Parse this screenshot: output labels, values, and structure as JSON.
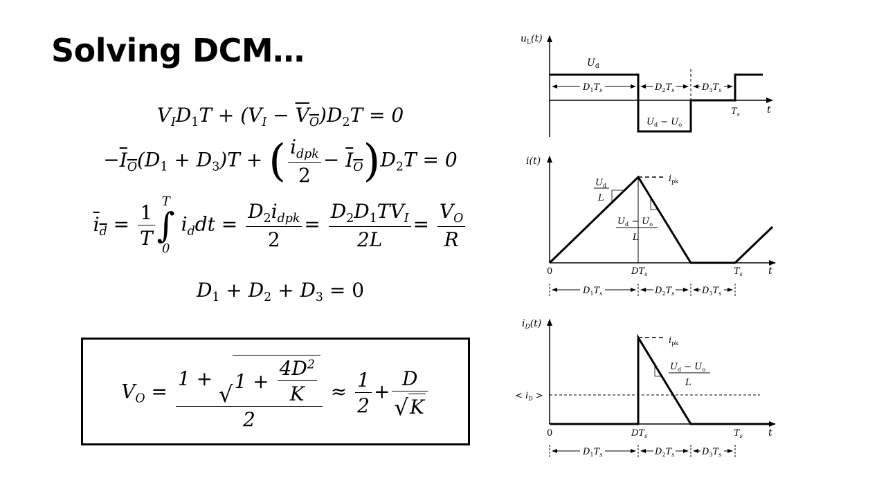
{
  "slide": {
    "title": "Solving DCM…"
  },
  "equations": {
    "eq1": {
      "a": "V",
      "ai": "I",
      "b": "D",
      "bi": "1",
      "c": "T + (",
      "d": "V",
      "di": "I",
      "e": " − ",
      "f": "V",
      "fi": "O",
      "g": ")",
      "h": "D",
      "hi": "2",
      "k": "T = 0"
    },
    "eq2": {
      "pre": "−",
      "io": "I",
      "ioi": "O",
      "p1": "(",
      "d1": "D",
      "d1i": "1",
      "plus": " + ",
      "d3": "D",
      "d3i": "3",
      "p2": ")T +",
      "lp": "(",
      "num": "i",
      "numi": "dpk",
      "den": "2",
      "minus": "−",
      "io2": "I",
      "io2i": "O",
      "rp": ")",
      "d2": "D",
      "d2i": "2",
      "tail": "T = 0"
    },
    "eq3": {
      "id": "i",
      "idi": "d",
      "eq": " =",
      "one": "1",
      "T": "T",
      "up": "T",
      "low": "0",
      "int": "∫",
      "body": "i",
      "bodyi": "d",
      "dt": "dt =",
      "n1a": "D",
      "n1ai": "2",
      "n1b": "i",
      "n1bi": "dpk",
      "d1": "2",
      "eq2": "=",
      "n2a": "D",
      "n2ai": "2",
      "n2b": "D",
      "n2bi": "1",
      "n2c": "TV",
      "n2ci": "I",
      "d2": "2L",
      "eq3": "=",
      "n3": "V",
      "n3i": "O",
      "d3": "R"
    },
    "eq4": {
      "a": "D",
      "ai": "1",
      "p1": " + ",
      "b": "D",
      "bi": "2",
      "p2": " + ",
      "c": "D",
      "ci": "3",
      "tail": " = 0"
    }
  },
  "result": {
    "lhs": "V",
    "lhsi": "O",
    "eq": " =",
    "one": "1 +",
    "rad_one": "1 +",
    "inner_num": "4D",
    "inner_sup": "2",
    "inner_den": "K",
    "den": "2",
    "approx": "≈",
    "half_num": "1",
    "half_den": "2",
    "plus": "+",
    "d_num": "D",
    "d_den": "K"
  },
  "diagram": {
    "panel1": {
      "ylabel": "u",
      "ylabel_sub": "L",
      "ylabel_tail": "(t)",
      "ud": "U",
      "ud_sub": "d",
      "d1ts": "D",
      "d1ts_sub": "1",
      "ts": "T",
      "ts_sub": "s",
      "d2": "D",
      "d2_sub": "2",
      "d3": "D",
      "d3_sub": "3",
      "neg": "U",
      "neg_sub1": "d",
      "neg_mid": " − U",
      "neg_sub2": "o",
      "t": "t",
      "Ts": "T",
      "Ts_sub": "s"
    },
    "panel2": {
      "ylabel": "i(t)",
      "slope1_num": "U",
      "slope1_num_sub": "d",
      "slope1_den": "L",
      "ipk": "i",
      "ipk_sub": "pk",
      "slope2_num": "U",
      "slope2_sub1": "d",
      "slope2_mid": " − U",
      "slope2_sub2": "o",
      "slope2_den": "L",
      "zero": "0",
      "DT": "DT",
      "DT_sub": "s",
      "Ts": "T",
      "Ts_sub": "s",
      "t": "t",
      "d1": "D",
      "d1_sub": "1",
      "d2": "D",
      "d2_sub": "2",
      "d3": "D",
      "d3_sub": "3",
      "ts": "T",
      "ts_sub": "s"
    },
    "panel3": {
      "ylabel": "i",
      "ylabel_sub": "D",
      "ylabel_tail": "(t)",
      "ipk": "i",
      "ipk_sub": "pk",
      "slope_num": "U",
      "slope_sub1": "d",
      "slope_mid": " − U",
      "slope_sub2": "o",
      "slope_den": "L",
      "avg": "< i",
      "avg_sub": "D",
      "avg_tail": " >",
      "zero": "0",
      "DT": "DT",
      "DT_sub": "s",
      "Ts": "T",
      "Ts_sub": "s",
      "t": "t",
      "d1": "D",
      "d1_sub": "1",
      "d2": "D",
      "d2_sub": "2",
      "d3": "D",
      "d3_sub": "3",
      "ts": "T",
      "ts_sub": "s"
    }
  }
}
